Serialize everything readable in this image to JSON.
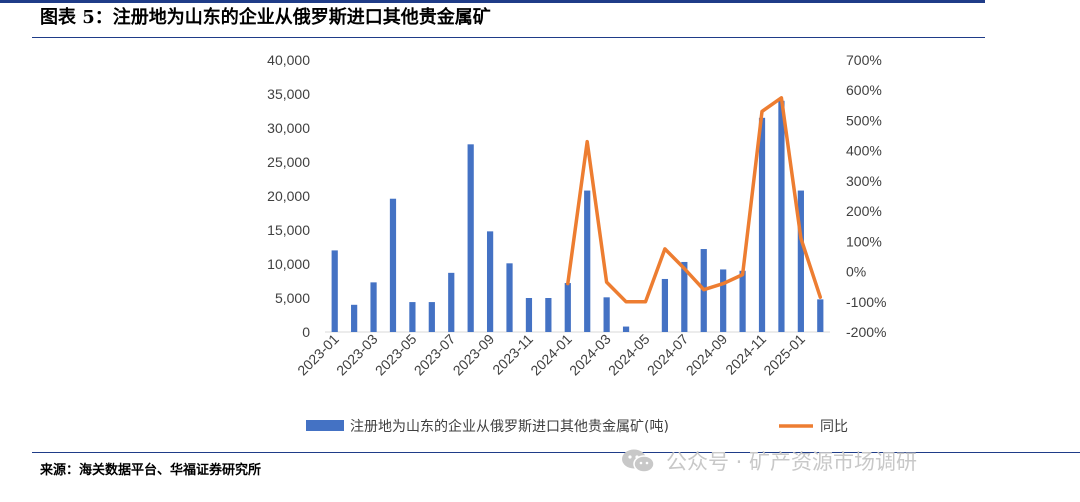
{
  "header": {
    "title": "图表 5：注册地为山东的企业从俄罗斯进口其他贵金属矿"
  },
  "source": "来源：海关数据平台、华福证券研究所",
  "watermark": {
    "text": "公众号 · 矿产资源市场调研",
    "icon": "wechat-icon"
  },
  "colors": {
    "bar": "#4472c4",
    "line": "#ed7d31",
    "rule": "#1f3c88"
  },
  "chart_data": {
    "type": "bar",
    "title": "",
    "x": [
      "2023-01",
      "2023-02",
      "2023-03",
      "2023-04",
      "2023-05",
      "2023-06",
      "2023-07",
      "2023-08",
      "2023-09",
      "2023-10",
      "2023-11",
      "2023-12",
      "2024-01",
      "2024-02",
      "2024-03",
      "2024-04",
      "2024-05",
      "2024-06",
      "2024-07",
      "2024-08",
      "2024-09",
      "2024-10",
      "2024-11",
      "2024-12",
      "2025-01",
      "2025-02"
    ],
    "x_tick_labels": [
      "2023-01",
      "2023-03",
      "2023-05",
      "2023-07",
      "2023-09",
      "2023-11",
      "2024-01",
      "2024-03",
      "2024-05",
      "2024-07",
      "2024-09",
      "2024-11",
      "2025-01"
    ],
    "series": [
      {
        "name": "注册地为山东的企业从俄罗斯进口其他贵金属矿(吨)",
        "type": "bar",
        "axis": "left",
        "values": [
          12000,
          4000,
          7300,
          19600,
          4400,
          4400,
          8700,
          27600,
          14800,
          10100,
          5000,
          5000,
          7200,
          20800,
          5100,
          800,
          null,
          7800,
          10300,
          12200,
          9200,
          9000,
          31500,
          34000,
          20800,
          4800
        ]
      },
      {
        "name": "同比",
        "type": "line",
        "axis": "right",
        "values": [
          null,
          null,
          null,
          null,
          null,
          null,
          null,
          null,
          null,
          null,
          null,
          null,
          -40,
          430,
          -35,
          -100,
          -100,
          75,
          10,
          -60,
          -40,
          -10,
          530,
          575,
          110,
          -85
        ]
      }
    ],
    "y_left": {
      "min": 0,
      "max": 40000,
      "ticks": [
        "0",
        "5,000",
        "10,000",
        "15,000",
        "20,000",
        "25,000",
        "30,000",
        "35,000",
        "40,000"
      ]
    },
    "y_right": {
      "min": -200,
      "max": 700,
      "ticks": [
        "-200%",
        "-100%",
        "0%",
        "100%",
        "200%",
        "300%",
        "400%",
        "500%",
        "600%",
        "700%"
      ]
    },
    "legend_placement": "bottom",
    "grid": false
  }
}
